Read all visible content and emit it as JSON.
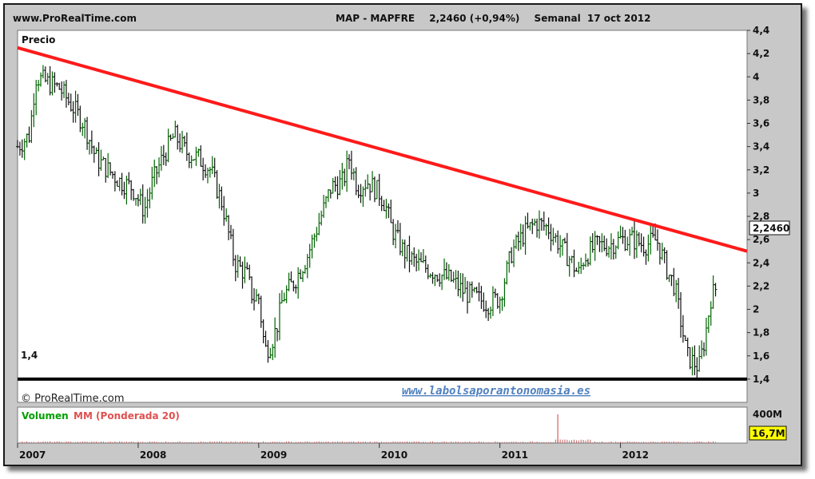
{
  "header": {
    "site": "www.ProRealTime.com",
    "ticker": "MAP - MAPFRE",
    "price_change": "2,2460 (+0,94%)",
    "period": "Semanal",
    "date": "17 oct 2012"
  },
  "price_panel": {
    "label": "Precio",
    "watermark": "© ProRealTime.com",
    "link": "www.labolsaporantonomasia.es",
    "current_price_label": "2,2460",
    "support_label": "1,4"
  },
  "volume_panel": {
    "label_volume": "Volumen",
    "label_ma": "MM (Ponderada 20)",
    "max_label": "400M",
    "current_label": "16,7M"
  },
  "colors": {
    "panel_bg": "#ffffff",
    "frame_bg": "#c8c8c8",
    "trendline": "#ff1a1a",
    "support": "#000000",
    "candle_up": "#006400",
    "candle_down": "#111111",
    "volume_label": "#00a000",
    "ma_label": "#e05050",
    "link": "#5080c0"
  },
  "chart_data": {
    "type": "line",
    "title": "MAP - MAPFRE",
    "ylim": [
      1.2,
      4.4
    ],
    "y_ticks": [
      "4,4",
      "4,2",
      "4",
      "3,8",
      "3,6",
      "3,4",
      "3,2",
      "3",
      "2,8",
      "2,6",
      "2,4",
      "2,2",
      "2",
      "1,8",
      "1,6",
      "1,4"
    ],
    "y_tick_values": [
      4.4,
      4.2,
      4.0,
      3.8,
      3.6,
      3.4,
      3.2,
      3.0,
      2.8,
      2.6,
      2.4,
      2.2,
      2.0,
      1.8,
      1.6,
      1.4
    ],
    "x_ticks": [
      "2007",
      "2008",
      "2009",
      "2010",
      "2011",
      "2012"
    ],
    "x_tick_values": [
      2007.0,
      2008.0,
      2009.0,
      2010.0,
      2011.0,
      2012.0
    ],
    "xlim": [
      2007.0,
      2013.05
    ],
    "series": [
      {
        "x": [
          2007.0,
          2007.1,
          2007.15,
          2007.25,
          2007.35,
          2007.45,
          2007.55,
          2007.65,
          2007.75,
          2007.85,
          2007.95,
          2008.05,
          2008.12,
          2008.2,
          2008.3,
          2008.4,
          2008.5,
          2008.6,
          2008.7,
          2008.8,
          2008.9,
          2008.95,
          2009.0,
          2009.05,
          2009.1,
          2009.15,
          2009.2,
          2009.3,
          2009.4,
          2009.5,
          2009.6,
          2009.7,
          2009.75,
          2009.82,
          2009.9,
          2010.0,
          2010.05,
          2010.1,
          2010.2,
          2010.3,
          2010.4,
          2010.5,
          2010.6,
          2010.7,
          2010.8,
          2010.9,
          2011.0,
          2011.1,
          2011.2,
          2011.3,
          2011.4,
          2011.5,
          2011.6,
          2011.65,
          2011.7,
          2011.8,
          2011.9,
          2012.0,
          2012.1,
          2012.2,
          2012.3,
          2012.4,
          2012.45,
          2012.5,
          2012.55,
          2012.6,
          2012.65,
          2012.7,
          2012.75,
          2012.8
        ],
        "values": [
          3.4,
          3.5,
          4.0,
          3.95,
          3.9,
          3.75,
          3.6,
          3.3,
          3.2,
          3.1,
          3.05,
          2.85,
          3.1,
          3.3,
          3.5,
          3.35,
          3.3,
          3.2,
          2.9,
          2.4,
          2.3,
          2.1,
          2.1,
          1.65,
          1.7,
          1.85,
          2.1,
          2.25,
          2.45,
          2.75,
          3.05,
          3.1,
          3.3,
          3.05,
          3.1,
          3.0,
          2.9,
          2.7,
          2.5,
          2.4,
          2.35,
          2.3,
          2.25,
          2.15,
          2.1,
          2.05,
          2.1,
          2.5,
          2.65,
          2.75,
          2.7,
          2.55,
          2.4,
          2.3,
          2.45,
          2.55,
          2.55,
          2.6,
          2.6,
          2.55,
          2.6,
          2.3,
          2.2,
          1.9,
          1.6,
          1.55,
          1.5,
          1.75,
          2.1,
          2.2
        ]
      }
    ],
    "trendline": {
      "x": [
        2007.0,
        2013.05
      ],
      "values": [
        4.25,
        2.5
      ]
    },
    "support_level": 1.4,
    "last_value": 2.246,
    "volume": {
      "ylim": [
        0,
        400
      ],
      "unit": "M",
      "current": 16.7,
      "spikes": [
        {
          "x": 2011.48,
          "value": 320
        }
      ]
    }
  }
}
